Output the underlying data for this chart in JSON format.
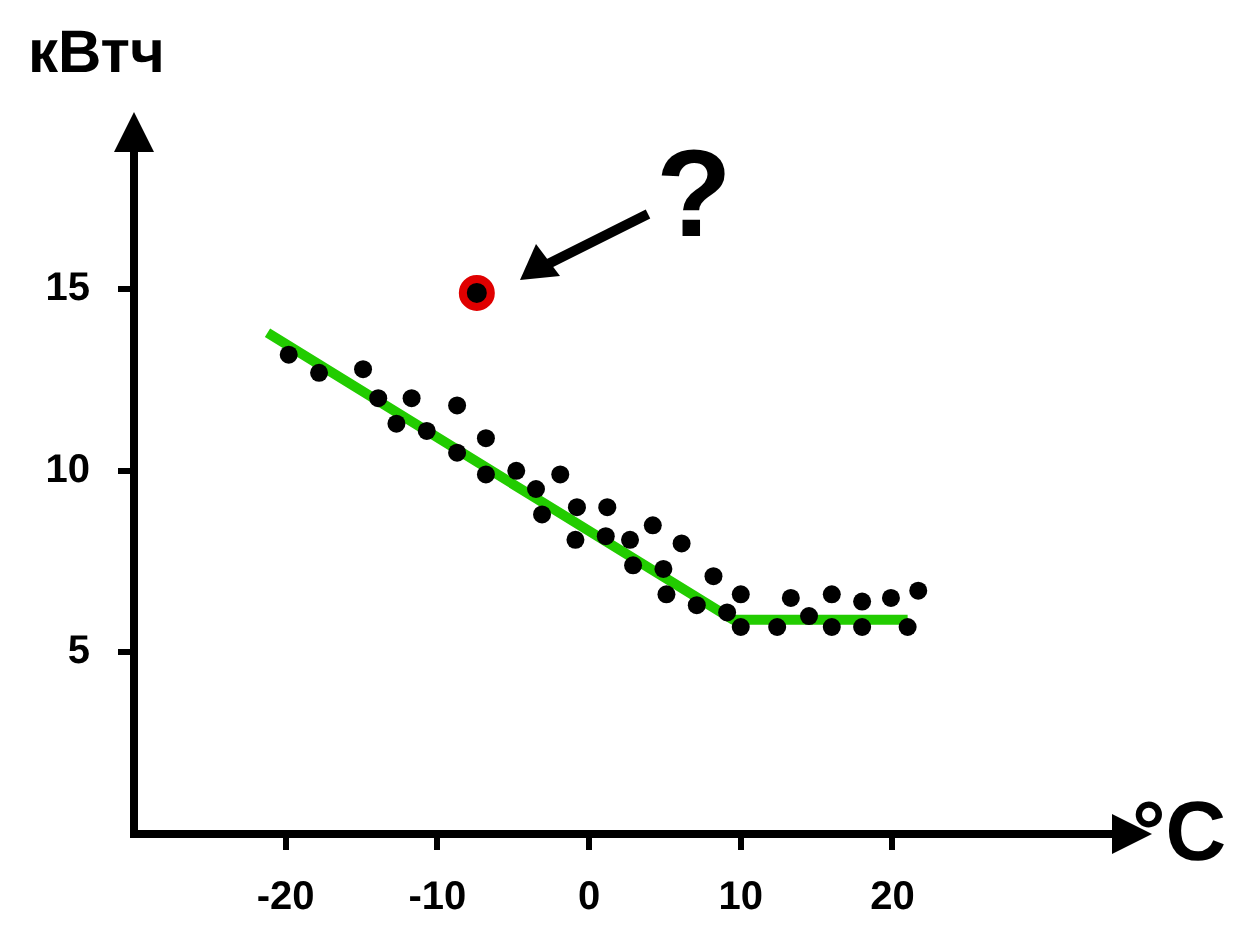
{
  "chart_data": {
    "type": "scatter",
    "ylabel": "кВтч",
    "xlabel": "°C",
    "annotations": [
      "?"
    ],
    "xlim": [
      -30,
      35
    ],
    "xticks": [
      -20,
      -10,
      0,
      10,
      20
    ],
    "ylim": [
      0,
      19
    ],
    "yticks": [
      5,
      10,
      15
    ],
    "grid": false,
    "legend": false,
    "marker": "circle",
    "series": [
      {
        "color": "#000000",
        "x": [
          -19.8,
          -17.8,
          -14.9,
          -13.9,
          -12.7,
          -11.7,
          -10.7,
          -8.7,
          -8.7,
          -6.8,
          -6.8,
          -4.8,
          -3.5,
          -1.9,
          -3.1,
          -0.8,
          1.2,
          -0.9,
          1.1,
          2.7,
          2.9,
          4.2,
          4.9,
          5.1,
          6.1,
          7.1,
          8.2,
          9.1,
          10.0,
          10.0,
          12.4,
          13.3,
          14.5,
          16.0,
          16.0,
          18.0,
          18.0,
          19.9,
          21.0,
          21.7
        ],
        "values": [
          13.2,
          12.7,
          12.8,
          12.0,
          11.3,
          12.0,
          11.1,
          11.8,
          10.5,
          10.9,
          9.9,
          10.0,
          9.5,
          9.9,
          8.8,
          9.0,
          9.0,
          8.1,
          8.2,
          8.1,
          7.4,
          8.5,
          7.3,
          6.6,
          8.0,
          6.3,
          7.1,
          6.1,
          6.6,
          5.7,
          5.7,
          6.5,
          6.0,
          6.6,
          5.7,
          6.4,
          5.7,
          6.5,
          5.7,
          6.7
        ]
      },
      {
        "color": "#e00000",
        "x": [
          -7.4
        ],
        "values": [
          14.9
        ]
      },
      {
        "type": "line",
        "color": "#22cc00",
        "marker": "none",
        "x": [
          -21.2,
          9.5,
          21
        ],
        "values": [
          13.8,
          5.9,
          5.9
        ]
      }
    ]
  }
}
